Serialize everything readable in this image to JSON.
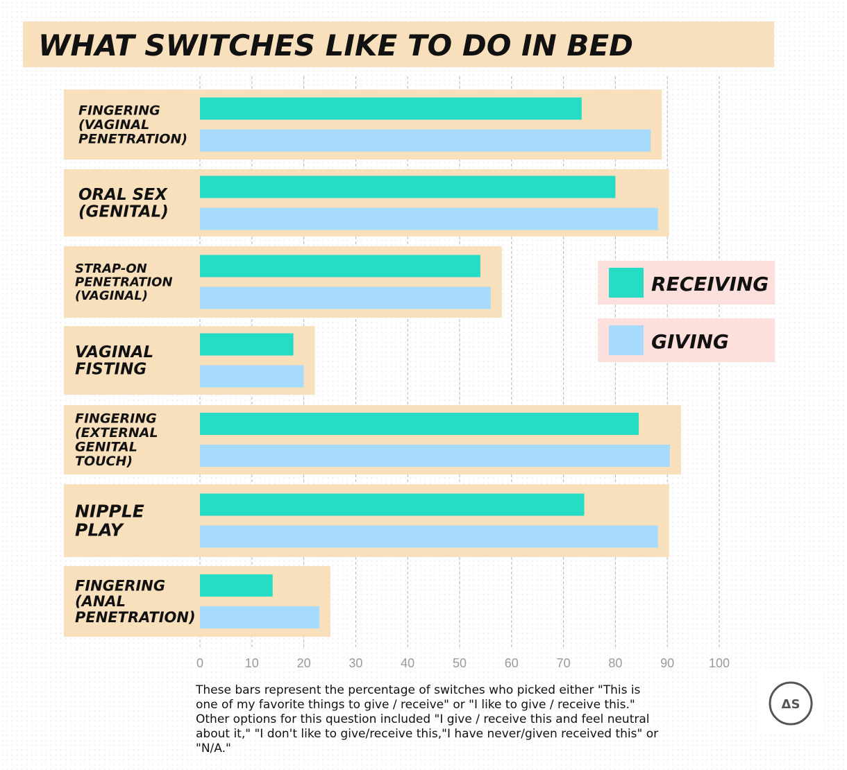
{
  "chart_data": {
    "type": "bar",
    "orientation": "horizontal",
    "title": "WHAT SWITCHES LIKE TO DO IN BED",
    "categories": [
      [
        "FINGERING",
        "(VAGINAL",
        "PENETRATION)"
      ],
      [
        "ORAL SEX",
        "(GENITAL)"
      ],
      [
        "STRAP-ON",
        "PENETRATION",
        "(VAGINAL)"
      ],
      [
        "VAGINAL",
        "FISTING"
      ],
      [
        "FINGERING",
        "(EXTERNAL",
        "GENITAL",
        "TOUCH)"
      ],
      [
        "NIPPLE",
        "PLAY"
      ],
      [
        "FINGERING",
        "(ANAL",
        "PENETRATION)"
      ]
    ],
    "series": [
      {
        "name": "RECEIVING",
        "color": "#26dcc5",
        "values": [
          73.5,
          80,
          54,
          18,
          84.5,
          74,
          14
        ]
      },
      {
        "name": "GIVING",
        "color": "#a6dbfb",
        "values": [
          86.8,
          88.2,
          56,
          20,
          90.5,
          88.2,
          23
        ]
      }
    ],
    "xlim": [
      0,
      100
    ],
    "xticks": [
      "0",
      "10",
      "20",
      "30",
      "40",
      "50",
      "60",
      "70",
      "80",
      "90",
      "100"
    ],
    "grid": true,
    "legend_placement": "right",
    "panel_color": "#f8e0bd",
    "legend_box_color": "#fde0dc",
    "footnote": [
      "These bars represent the percentage of switches who picked either \"This is",
      "one of my favorite things to give / receive\" or \"I like to give / receive this.\"",
      "Other options for this question included \"I give / receive this and feel neutral",
      "about it,\" \"I don't like to give/receive this,\"I have never/given received this\" or",
      "\"N/A.\""
    ],
    "logo_text": "ΔS"
  }
}
